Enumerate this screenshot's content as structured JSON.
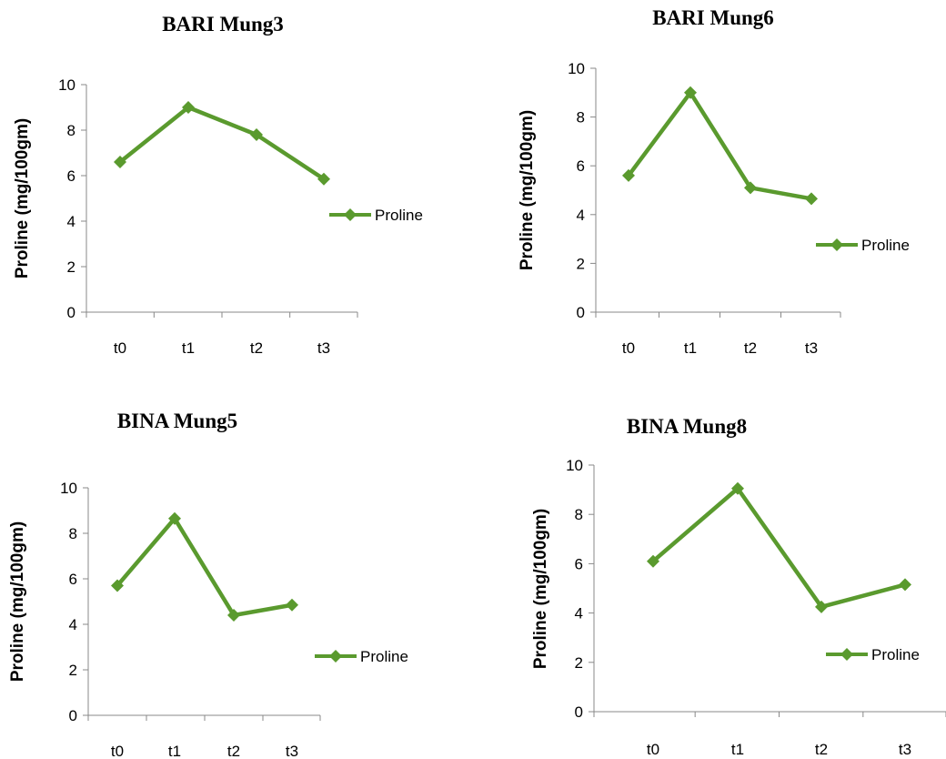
{
  "chart_data": [
    {
      "type": "line",
      "title": "BARI Mung3",
      "ylabel": "Proline (mg/100gm)",
      "categories": [
        "t0",
        "t1",
        "t2",
        "t3"
      ],
      "ylim": [
        0,
        10
      ],
      "yticks": [
        "0",
        "2",
        "4",
        "6",
        "8",
        "10"
      ],
      "series": [
        {
          "name": "Proline",
          "values": [
            6.6,
            9.0,
            7.8,
            5.85
          ],
          "color": "#5a9a2e"
        }
      ],
      "legend": "right",
      "grid": false
    },
    {
      "type": "line",
      "title": "BARI Mung6",
      "ylabel": "Proline (mg/100gm)",
      "categories": [
        "t0",
        "t1",
        "t2",
        "t3"
      ],
      "ylim": [
        0,
        10
      ],
      "yticks": [
        "0",
        "2",
        "4",
        "6",
        "8",
        "10"
      ],
      "series": [
        {
          "name": "Proline",
          "values": [
            5.6,
            9.0,
            5.1,
            4.65
          ],
          "color": "#5a9a2e"
        }
      ],
      "legend": "right",
      "grid": false
    },
    {
      "type": "line",
      "title": "BINA Mung5",
      "ylabel": "Proline (mg/100gm)",
      "categories": [
        "t0",
        "t1",
        "t2",
        "t3"
      ],
      "ylim": [
        0,
        10
      ],
      "yticks": [
        "0",
        "2",
        "4",
        "6",
        "8",
        "10"
      ],
      "series": [
        {
          "name": "Proline",
          "values": [
            5.7,
            8.65,
            4.4,
            4.85
          ],
          "color": "#5a9a2e"
        }
      ],
      "legend": "right",
      "grid": false
    },
    {
      "type": "line",
      "title": "BINA Mung8",
      "ylabel": "Proline (mg/100gm)",
      "categories": [
        "t0",
        "t1",
        "t2",
        "t3"
      ],
      "ylim": [
        0,
        10
      ],
      "yticks": [
        "0",
        "2",
        "4",
        "6",
        "8",
        "10"
      ],
      "series": [
        {
          "name": "Proline",
          "values": [
            6.1,
            9.05,
            4.25,
            5.15
          ],
          "color": "#5a9a2e"
        }
      ],
      "legend": "right",
      "grid": false
    }
  ]
}
